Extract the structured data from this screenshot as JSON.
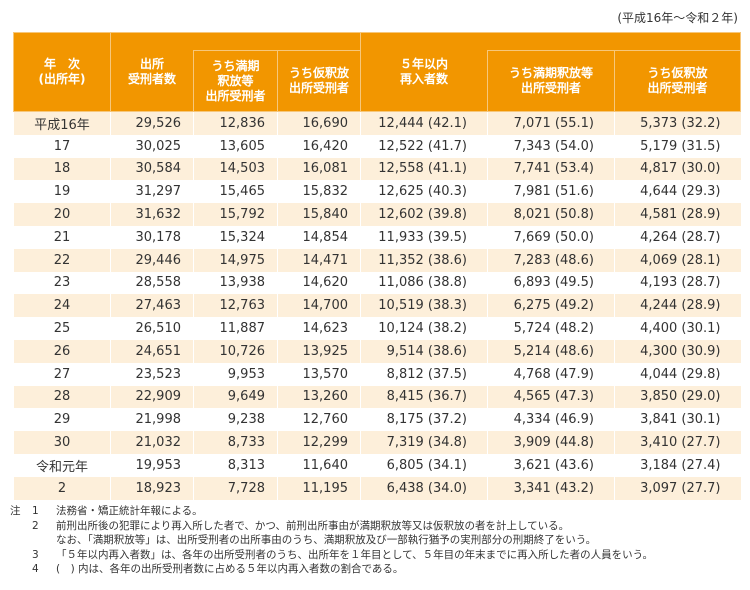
{
  "period": "(平成16年～令和２年)",
  "headers": {
    "year": "年　次\n(出所年)",
    "released": "出所\n受刑者数",
    "released_expiry": "うち満期\n釈放等\n出所受刑者",
    "released_parole": "うち仮釈放\n出所受刑者",
    "reentry": "５年以内\n再入者数",
    "reentry_expiry": "うち満期釈放等\n出所受刑者",
    "reentry_parole": "うち仮釈放\n出所受刑者"
  },
  "rows": [
    [
      "平成16年",
      "29,526",
      "12,836",
      "16,690",
      "12,444 (42.1)",
      "7,071 (55.1)",
      "5,373 (32.2)"
    ],
    [
      "17",
      "30,025",
      "13,605",
      "16,420",
      "12,522 (41.7)",
      "7,343 (54.0)",
      "5,179 (31.5)"
    ],
    [
      "18",
      "30,584",
      "14,503",
      "16,081",
      "12,558 (41.1)",
      "7,741 (53.4)",
      "4,817 (30.0)"
    ],
    [
      "19",
      "31,297",
      "15,465",
      "15,832",
      "12,625 (40.3)",
      "7,981 (51.6)",
      "4,644 (29.3)"
    ],
    [
      "20",
      "31,632",
      "15,792",
      "15,840",
      "12,602 (39.8)",
      "8,021 (50.8)",
      "4,581 (28.9)"
    ],
    [
      "21",
      "30,178",
      "15,324",
      "14,854",
      "11,933 (39.5)",
      "7,669 (50.0)",
      "4,264 (28.7)"
    ],
    [
      "22",
      "29,446",
      "14,975",
      "14,471",
      "11,352 (38.6)",
      "7,283 (48.6)",
      "4,069 (28.1)"
    ],
    [
      "23",
      "28,558",
      "13,938",
      "14,620",
      "11,086 (38.8)",
      "6,893 (49.5)",
      "4,193 (28.7)"
    ],
    [
      "24",
      "27,463",
      "12,763",
      "14,700",
      "10,519 (38.3)",
      "6,275 (49.2)",
      "4,244 (28.9)"
    ],
    [
      "25",
      "26,510",
      "11,887",
      "14,623",
      "10,124 (38.2)",
      "5,724 (48.2)",
      "4,400 (30.1)"
    ],
    [
      "26",
      "24,651",
      "10,726",
      "13,925",
      "9,514 (38.6)",
      "5,214 (48.6)",
      "4,300 (30.9)"
    ],
    [
      "27",
      "23,523",
      "9,953",
      "13,570",
      "8,812 (37.5)",
      "4,768 (47.9)",
      "4,044 (29.8)"
    ],
    [
      "28",
      "22,909",
      "9,649",
      "13,260",
      "8,415 (36.7)",
      "4,565 (47.3)",
      "3,850 (29.0)"
    ],
    [
      "29",
      "21,998",
      "9,238",
      "12,760",
      "8,175 (37.2)",
      "4,334 (46.9)",
      "3,841 (30.1)"
    ],
    [
      "30",
      "21,032",
      "8,733",
      "12,299",
      "7,319 (34.8)",
      "3,909 (44.8)",
      "3,410 (27.7)"
    ],
    [
      "令和元年",
      "19,953",
      "8,313",
      "11,640",
      "6,805 (34.1)",
      "3,621 (43.6)",
      "3,184 (27.4)"
    ],
    [
      "2",
      "18,923",
      "7,728",
      "11,195",
      "6,438 (34.0)",
      "3,341 (43.2)",
      "3,097 (27.7)"
    ]
  ],
  "colors": {
    "header": "#F29600",
    "stripe": "#FDEFDA"
  },
  "notes": {
    "label": "注",
    "items": [
      {
        "num": "1",
        "text": "法務省・矯正統計年報による。"
      },
      {
        "num": "2",
        "text": "前刑出所後の犯罪により再入所した者で、かつ、前刑出所事由が満期釈放等又は仮釈放の者を計上している。"
      },
      {
        "num": "",
        "text": "なお、「満期釈放等」は、出所受刑者の出所事由のうち、満期釈放及び一部執行猶予の実刑部分の刑期終了をいう。"
      },
      {
        "num": "3",
        "text": "「５年以内再入者数」は、各年の出所受刑者のうち、出所年を１年目として、５年目の年末までに再入所した者の人員をいう。"
      },
      {
        "num": "4",
        "text": "(　) 内は、各年の出所受刑者数に占める５年以内再入者数の割合である。"
      }
    ]
  }
}
